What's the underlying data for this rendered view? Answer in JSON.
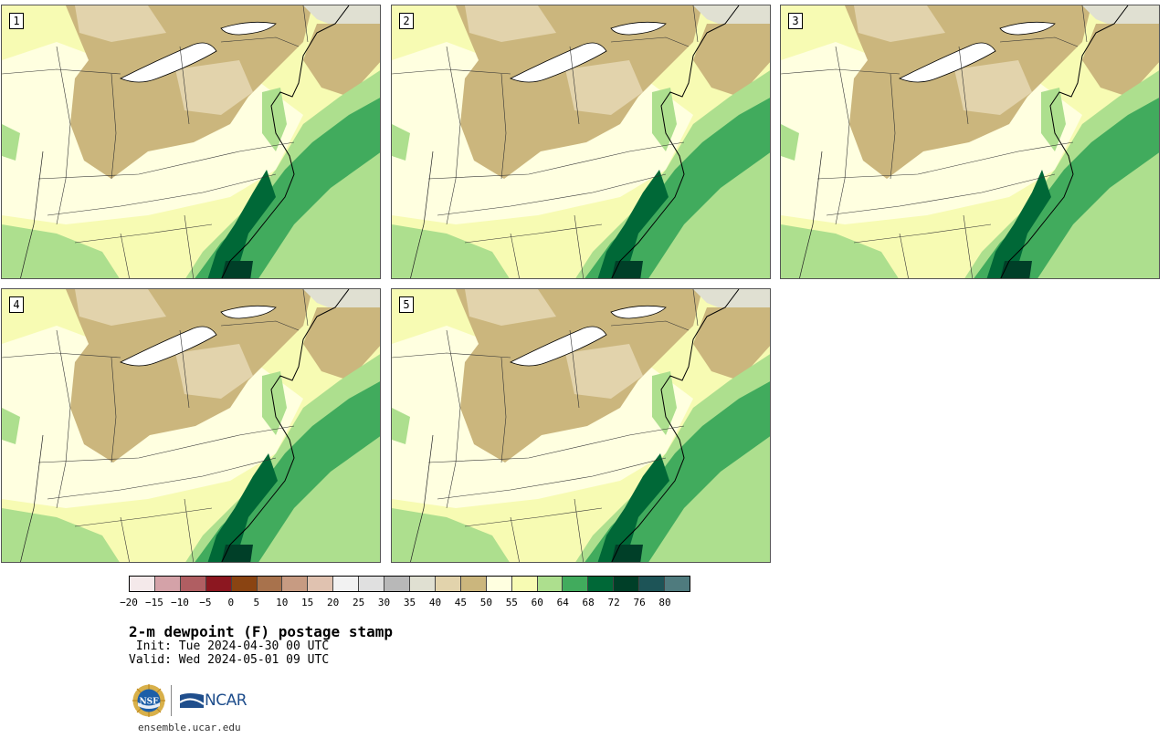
{
  "panels": [
    {
      "label": "1",
      "variant": 0
    },
    {
      "label": "2",
      "variant": 1
    },
    {
      "label": "3",
      "variant": 2
    },
    {
      "label": "4",
      "variant": 3
    },
    {
      "label": "5",
      "variant": 4
    }
  ],
  "colorbar": {
    "colors": [
      "#f4e9ea",
      "#d4a2a8",
      "#b05e62",
      "#8c1720",
      "#8a4412",
      "#a8724c",
      "#c79b82",
      "#e0c2b0",
      "#f2f2f2",
      "#e0e0e0",
      "#b8b8b8",
      "#e0e0d2",
      "#e2d3ac",
      "#cbb67d",
      "#ffffe0",
      "#f7fbb3",
      "#addf8e",
      "#41ab5d",
      "#006837",
      "#003f28",
      "#1d5457",
      "#4f7b7e"
    ],
    "tick_labels": [
      "−20",
      "−15",
      "−10",
      "−5",
      "0",
      "5",
      "10",
      "15",
      "20",
      "25",
      "30",
      "35",
      "40",
      "45",
      "50",
      "55",
      "60",
      "64",
      "68",
      "72",
      "76",
      "80"
    ]
  },
  "title": "2-m dewpoint (F) postage stamp",
  "init_line": " Init: Tue 2024-04-30 00 UTC",
  "valid_line": "Valid: Wed 2024-05-01 09 UTC",
  "logos": {
    "nsf": "NSF",
    "ncar": "NCAR"
  },
  "site": "ensemble.ucar.edu"
}
